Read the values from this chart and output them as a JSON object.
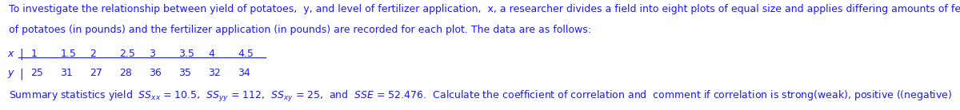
{
  "line1": "To investigate the relationship between yield of potatoes,  y, and level of fertilizer application,  x, a researcher divides a field into eight plots of equal size and applies differing amounts of fertilizer to each. The yield",
  "line2": "of potatoes (in pounds) and the fertilizer application (in pounds) are recorded for each plot. The data are as follows:",
  "x_values": [
    "1",
    "1.5",
    "2",
    "2.5",
    "3",
    "3.5",
    "4",
    "4.5"
  ],
  "y_values": [
    "25",
    "31",
    "27",
    "28",
    "36",
    "35",
    "32",
    "34"
  ],
  "summary_text": "Summary statistics yield  $SS_{xx}$ = 10.5,  $SS_{yy}$ = 112,  $SS_{xy}$ = 25,  and  $SSE$ = 52.476.  Calculate the coefficient of correlation and  comment if correlation is strong(weak), positive ((negative)",
  "font_size": 9,
  "text_color": "#1a1aff",
  "bg_color": "#ffffff",
  "fig_width": 12.0,
  "fig_height": 1.38
}
